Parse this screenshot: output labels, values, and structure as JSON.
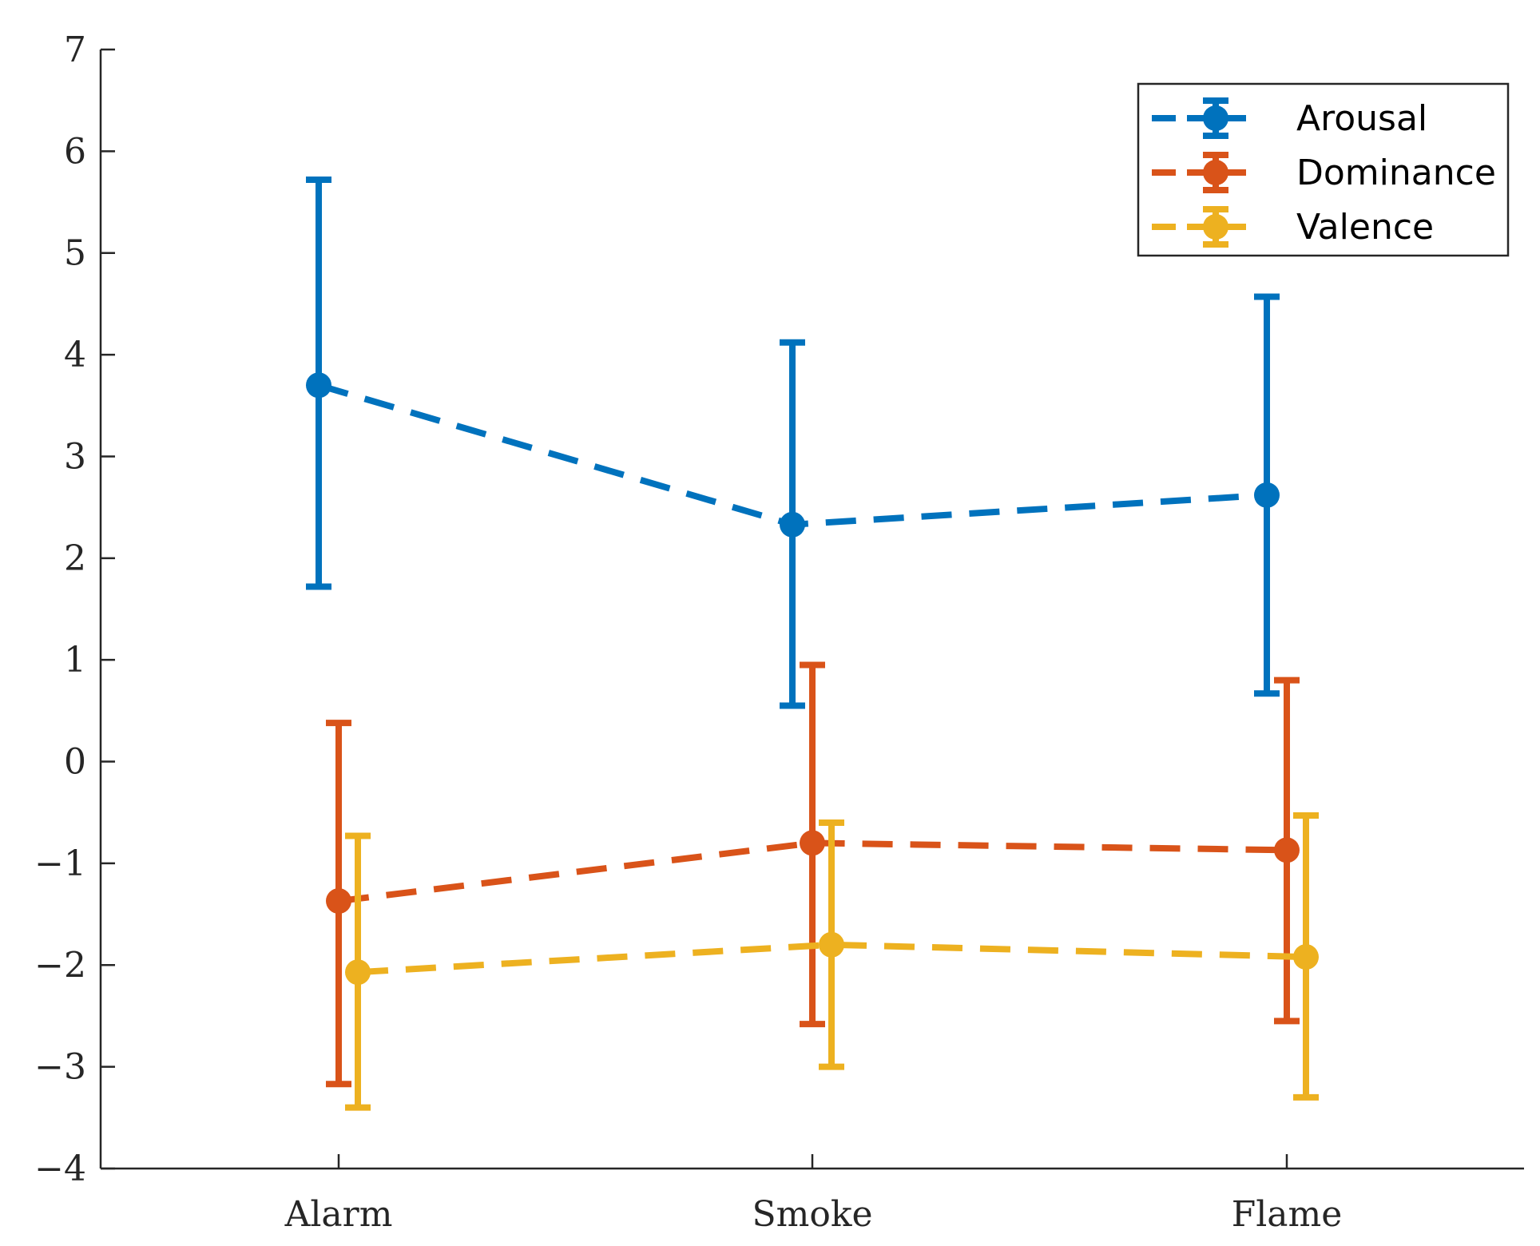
{
  "chart_data": {
    "type": "line",
    "title": "",
    "xlabel": "",
    "ylabel": "",
    "categories": [
      "Alarm",
      "Smoke",
      "Flame"
    ],
    "ylim": [
      -4,
      7
    ],
    "yticks": [
      "7",
      "6",
      "5",
      "4",
      "3",
      "2",
      "1",
      "0",
      "−1",
      "−2",
      "−3",
      "−4"
    ],
    "ytick_values": [
      7,
      6,
      5,
      4,
      3,
      2,
      1,
      0,
      -1,
      -2,
      -3,
      -4
    ],
    "legend_position": "top-right",
    "series": [
      {
        "name": "Arousal",
        "color": "#0072BD",
        "values": [
          3.7,
          2.33,
          2.62
        ],
        "err_low": [
          1.72,
          0.55,
          0.67
        ],
        "err_high": [
          5.72,
          4.12,
          4.57
        ]
      },
      {
        "name": "Dominance",
        "color": "#D95319",
        "values": [
          -1.37,
          -0.8,
          -0.87
        ],
        "err_low": [
          -3.17,
          -2.58,
          -2.55
        ],
        "err_high": [
          0.38,
          0.95,
          0.8
        ]
      },
      {
        "name": "Valence",
        "color": "#EDB120",
        "values": [
          -2.07,
          -1.8,
          -1.92
        ],
        "err_low": [
          -3.4,
          -3.0,
          -3.3
        ],
        "err_high": [
          -0.73,
          -0.6,
          -0.53
        ]
      }
    ]
  }
}
